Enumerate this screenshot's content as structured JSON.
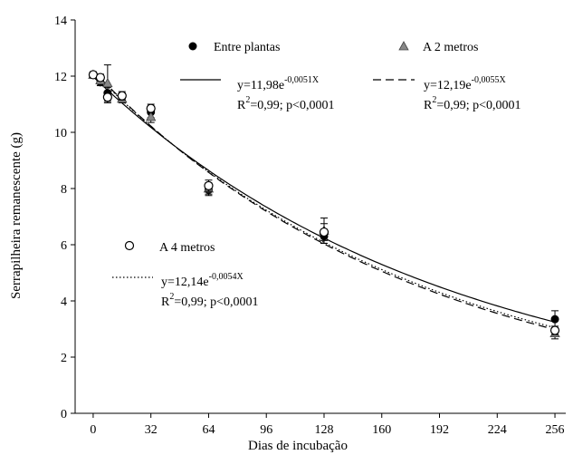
{
  "chart_data": {
    "type": "scatter",
    "xlabel": "Dias de incubação",
    "ylabel": "Serrapilheira remanescente (g)",
    "xlim": [
      -10,
      262
    ],
    "ylim": [
      0,
      14
    ],
    "xticks": [
      0,
      32,
      64,
      96,
      128,
      160,
      192,
      224,
      256
    ],
    "yticks": [
      0,
      2,
      4,
      6,
      8,
      10,
      12,
      14
    ],
    "grid": false,
    "series": [
      {
        "name": "Entre plantas",
        "marker": "circle-filled",
        "color": "#000000",
        "points": [
          {
            "x": 0,
            "y": 12.05,
            "err": 0.1
          },
          {
            "x": 4,
            "y": 11.78,
            "err": 0.12
          },
          {
            "x": 8,
            "y": 11.4,
            "err": 0.2
          },
          {
            "x": 16,
            "y": 11.25,
            "err": 0.15
          },
          {
            "x": 32,
            "y": 10.72,
            "err": 0.2
          },
          {
            "x": 64,
            "y": 7.95,
            "err": 0.2
          },
          {
            "x": 128,
            "y": 6.3,
            "err": 0.25
          },
          {
            "x": 256,
            "y": 3.35,
            "err": 0.3
          }
        ],
        "fit": {
          "a": 11.98,
          "b": -0.0051,
          "eq_prefix": "y=11,98e",
          "eq_exponent": "-0,0051X",
          "r2_prefix": "R",
          "r2_sup": "2",
          "r2_suffix": "=0,99; p<0,0001",
          "line": "solid"
        }
      },
      {
        "name": "A 2 metros",
        "marker": "triangle-gray",
        "color": "#888888",
        "points": [
          {
            "x": 0,
            "y": 12.05,
            "err": 0.1
          },
          {
            "x": 4,
            "y": 11.85,
            "err": 0.12
          },
          {
            "x": 8,
            "y": 11.75,
            "err": 0.65
          },
          {
            "x": 16,
            "y": 11.2,
            "err": 0.15
          },
          {
            "x": 32,
            "y": 10.55,
            "err": 0.2
          },
          {
            "x": 64,
            "y": 8.0,
            "err": 0.2
          },
          {
            "x": 128,
            "y": 6.5,
            "err": 0.45
          },
          {
            "x": 256,
            "y": 2.85,
            "err": 0.2
          }
        ],
        "fit": {
          "a": 12.19,
          "b": -0.0055,
          "eq_prefix": "y=12,19e",
          "eq_exponent": "-0,0055X",
          "r2_prefix": "R",
          "r2_sup": "2",
          "r2_suffix": "=0,99; p<0,0001",
          "line": "dashed"
        }
      },
      {
        "name": "A 4 metros",
        "marker": "circle-open",
        "color": "#000000",
        "points": [
          {
            "x": 0,
            "y": 12.05,
            "err": 0.1
          },
          {
            "x": 4,
            "y": 11.95,
            "err": 0.12
          },
          {
            "x": 8,
            "y": 11.25,
            "err": 0.2
          },
          {
            "x": 16,
            "y": 11.3,
            "err": 0.15
          },
          {
            "x": 32,
            "y": 10.85,
            "err": 0.15
          },
          {
            "x": 64,
            "y": 8.1,
            "err": 0.2
          },
          {
            "x": 128,
            "y": 6.45,
            "err": 0.3
          },
          {
            "x": 256,
            "y": 2.95,
            "err": 0.15
          }
        ],
        "fit": {
          "a": 12.14,
          "b": -0.0054,
          "eq_prefix": "y=12,14e",
          "eq_exponent": "-0,0054X",
          "r2_prefix": "R",
          "r2_sup": "2",
          "r2_suffix": "=0,99; p<0,0001",
          "line": "dotted"
        }
      }
    ]
  }
}
